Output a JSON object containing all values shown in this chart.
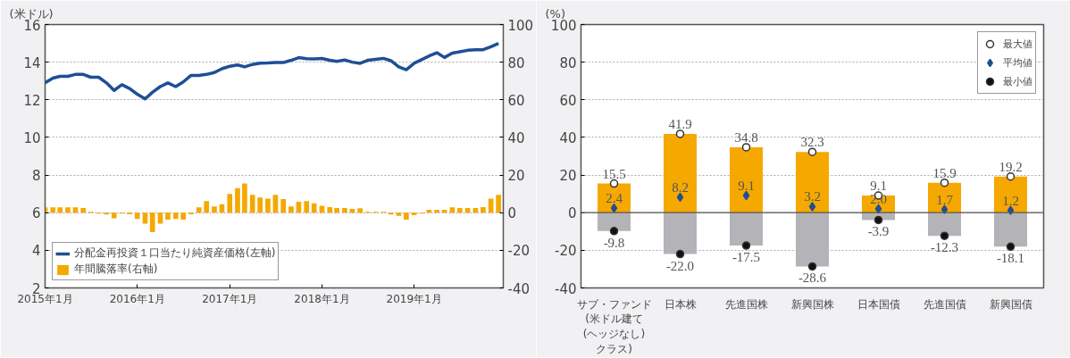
{
  "chart_data": [
    {
      "type": "line",
      "ylabel": "(米ドル)",
      "x": [
        "2015-01",
        "2015-02",
        "2015-03",
        "2015-04",
        "2015-05",
        "2015-06",
        "2015-07",
        "2015-08",
        "2015-09",
        "2015-10",
        "2015-11",
        "2015-12",
        "2016-01",
        "2016-02",
        "2016-03",
        "2016-04",
        "2016-05",
        "2016-06",
        "2016-07",
        "2016-08",
        "2016-09",
        "2016-10",
        "2016-11",
        "2016-12",
        "2017-01",
        "2017-02",
        "2017-03",
        "2017-04",
        "2017-05",
        "2017-06",
        "2017-07",
        "2017-08",
        "2017-09",
        "2017-10",
        "2017-11",
        "2017-12",
        "2018-01",
        "2018-02",
        "2018-03",
        "2018-04",
        "2018-05",
        "2018-06",
        "2018-07",
        "2018-08",
        "2018-09",
        "2018-10",
        "2018-11",
        "2018-12",
        "2019-01",
        "2019-02",
        "2019-03",
        "2019-04",
        "2019-05",
        "2019-06",
        "2019-07",
        "2019-08",
        "2019-09",
        "2019-10",
        "2019-11",
        "2019-12"
      ],
      "series": [
        {
          "name": "分配金再投資１口当たり純資産価格(左軸)",
          "color": "#1f4e96",
          "values": [
            12.9,
            13.15,
            13.25,
            13.25,
            13.35,
            13.35,
            13.2,
            13.2,
            12.9,
            12.5,
            12.8,
            12.6,
            12.3,
            12.05,
            12.4,
            12.7,
            12.9,
            12.7,
            12.95,
            13.3,
            13.3,
            13.35,
            13.45,
            13.65,
            13.78,
            13.85,
            13.75,
            13.88,
            13.95,
            13.96,
            13.98,
            13.98,
            14.1,
            14.24,
            14.18,
            14.17,
            14.2,
            14.1,
            14.04,
            14.12,
            14.0,
            13.94,
            14.1,
            14.15,
            14.2,
            14.08,
            13.75,
            13.6,
            13.94,
            14.14,
            14.33,
            14.5,
            14.25,
            14.48,
            14.55,
            14.63,
            14.66,
            14.66,
            14.82,
            15.0
          ]
        },
        {
          "name": "年間騰落率(右軸)",
          "type": "bar",
          "axis": "y2",
          "color": "#f5a800",
          "values": [
            2.8,
            2.8,
            2.8,
            2.8,
            2.8,
            2.5,
            0.5,
            -0.5,
            -1,
            -3,
            -0.5,
            -0.8,
            -3.3,
            -5.8,
            -10.3,
            -5.8,
            -3.7,
            -3.3,
            -3.7,
            -0.8,
            2.8,
            6.2,
            3.3,
            4.5,
            10,
            13,
            15.5,
            9.5,
            8,
            7.5,
            9.5,
            7.2,
            3.3,
            5.8,
            6.2,
            5,
            3.7,
            3,
            2.5,
            2.5,
            2,
            2.3,
            0.5,
            0.5,
            0.5,
            -1,
            -1.7,
            -3.7,
            -1.3,
            -0.5,
            1.5,
            1.5,
            1.5,
            2.8,
            2.5,
            2.5,
            2.5,
            3,
            7.5,
            9.5
          ]
        }
      ],
      "xlim": [
        "2015-01",
        "2019-12-20"
      ],
      "xticks": [
        {
          "value": "2015-01",
          "label": "2015年1月"
        },
        {
          "value": "2016-01",
          "label": "2016年1月"
        },
        {
          "value": "2017-01",
          "label": "2017年1月"
        },
        {
          "value": "2018-01",
          "label": "2018年1月"
        },
        {
          "value": "2019-01",
          "label": "2019年1月"
        }
      ],
      "ylim": [
        2,
        16
      ],
      "yticks": [
        2,
        4,
        6,
        8,
        10,
        12,
        14,
        16
      ],
      "y2lim": [
        -40,
        100
      ],
      "y2ticks": [
        -40,
        -20,
        0,
        20,
        40,
        60,
        80,
        100
      ],
      "grid": "y",
      "legend": "bottom left"
    },
    {
      "type": "bar",
      "ylabel": "(%)",
      "stacked": true,
      "categories": [
        "サブ・ファンド\n(米ドル建て\n(ヘッジなし)\nクラス)",
        "日本株",
        "先進国株",
        "新興国株",
        "日本国債",
        "先進国債",
        "新興国債"
      ],
      "series": [
        {
          "color": "#f5a800",
          "values": [
            15.5,
            41.9,
            34.8,
            32.3,
            9.1,
            15.9,
            19.2
          ]
        },
        {
          "color": "#b4b4b8",
          "values": [
            -9.8,
            -22.0,
            -17.5,
            -28.6,
            -3.9,
            -12.3,
            -18.1
          ]
        },
        {
          "name": "最大値",
          "type": "scatter",
          "marker": "circle",
          "color": "#ffffff",
          "values": [
            15.5,
            41.9,
            34.8,
            32.3,
            9.1,
            15.9,
            19.2
          ],
          "value_labels": [
            "15.5",
            "41.9",
            "34.8",
            "32.3",
            "9.1",
            "15.9",
            "19.2"
          ]
        },
        {
          "name": "平均値",
          "type": "scatter",
          "marker": "diamond",
          "color": "#1f4e96",
          "values": [
            2.4,
            8.2,
            9.1,
            3.2,
            2.0,
            1.7,
            1.2
          ],
          "value_labels": [
            "2.4",
            "8.2",
            "9.1",
            "3.2",
            "2.0",
            "1.7",
            "1.2"
          ]
        },
        {
          "name": "最小値",
          "type": "scatter",
          "marker": "circle",
          "color": "#111111",
          "values": [
            -9.8,
            -22.0,
            -17.5,
            -28.6,
            -3.9,
            -12.3,
            -18.1
          ],
          "value_labels": [
            "-9.8",
            "-22.0",
            "-17.5",
            "-28.6",
            "-3.9",
            "-12.3",
            "-18.1"
          ]
        }
      ],
      "ylim": [
        -40,
        100
      ],
      "yticks": [
        -40,
        -20,
        0,
        20,
        40,
        60,
        80,
        100
      ],
      "grid": "y",
      "legend": "top right"
    }
  ]
}
